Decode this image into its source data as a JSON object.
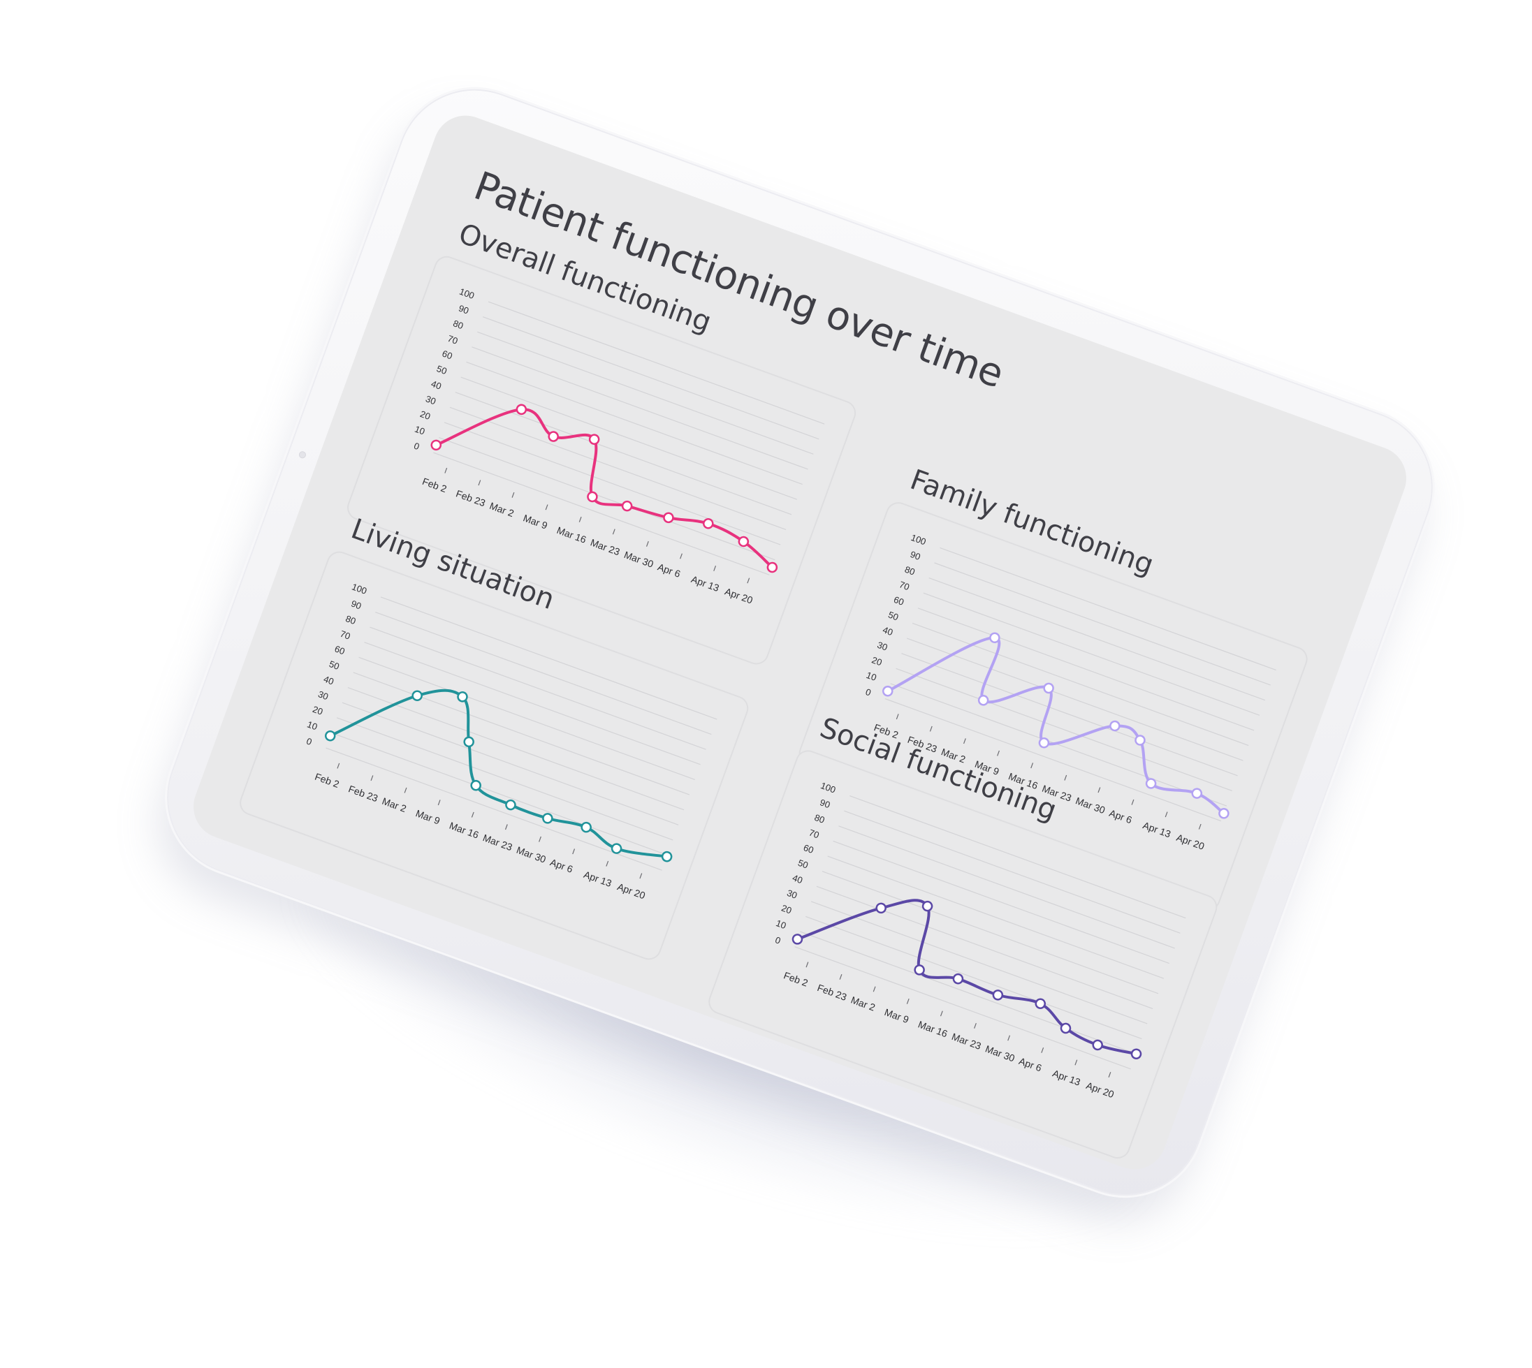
{
  "page": {
    "title": "Patient functioning over time"
  },
  "chart_data": [
    {
      "id": "overall",
      "type": "line",
      "title": "Overall functioning",
      "color": "#e8327e",
      "categories": [
        "Feb 2",
        "Feb 23",
        "Mar 2",
        "Mar 9",
        "Mar 16",
        "Mar 23",
        "Mar 30",
        "Apr 6",
        "Apr 13",
        "Apr 20"
      ],
      "ylim": [
        0,
        100
      ],
      "yticks": [
        0,
        10,
        20,
        30,
        40,
        50,
        60,
        70,
        80,
        90,
        100
      ],
      "grid": true,
      "points": [
        {
          "x": 0,
          "y": 5
        },
        {
          "x": 1.9,
          "y": 44
        },
        {
          "x": 3.0,
          "y": 35
        },
        {
          "x": 4.1,
          "y": 42
        },
        {
          "x": 4.6,
          "y": 8
        },
        {
          "x": 5.6,
          "y": 10
        },
        {
          "x": 6.8,
          "y": 12
        },
        {
          "x": 7.9,
          "y": 17
        },
        {
          "x": 9.0,
          "y": 14
        },
        {
          "x": 10.0,
          "y": 5
        }
      ]
    },
    {
      "id": "family",
      "type": "line",
      "title": "Family functioning",
      "color": "#b3a2f3",
      "categories": [
        "Feb 2",
        "Feb 23",
        "Mar 2",
        "Mar 9",
        "Mar 16",
        "Mar 23",
        "Mar 30",
        "Apr 6",
        "Apr 13",
        "Apr 20"
      ],
      "ylim": [
        0,
        100
      ],
      "yticks": [
        0,
        10,
        20,
        30,
        40,
        50,
        60,
        70,
        80,
        90,
        100
      ],
      "grid": true,
      "points": [
        {
          "x": 0,
          "y": 5
        },
        {
          "x": 2.3,
          "y": 59
        },
        {
          "x": 2.6,
          "y": 20
        },
        {
          "x": 4.2,
          "y": 41
        },
        {
          "x": 4.6,
          "y": 8
        },
        {
          "x": 6.3,
          "y": 33
        },
        {
          "x": 7.1,
          "y": 30
        },
        {
          "x": 7.8,
          "y": 7
        },
        {
          "x": 9.1,
          "y": 11
        },
        {
          "x": 10.0,
          "y": 5
        }
      ]
    },
    {
      "id": "living",
      "type": "line",
      "title": "Living situation",
      "color": "#21939a",
      "categories": [
        "Feb 2",
        "Feb 23",
        "Mar 2",
        "Mar 9",
        "Mar 16",
        "Mar 23",
        "Mar 30",
        "Apr 6",
        "Apr 13",
        "Apr 20"
      ],
      "ylim": [
        0,
        100
      ],
      "yticks": [
        0,
        10,
        20,
        30,
        40,
        50,
        60,
        70,
        80,
        90,
        100
      ],
      "grid": true,
      "points": [
        {
          "x": 0,
          "y": 8
        },
        {
          "x": 1.9,
          "y": 50
        },
        {
          "x": 3.1,
          "y": 59
        },
        {
          "x": 3.7,
          "y": 34
        },
        {
          "x": 4.3,
          "y": 10
        },
        {
          "x": 5.4,
          "y": 6
        },
        {
          "x": 6.5,
          "y": 6
        },
        {
          "x": 7.6,
          "y": 9
        },
        {
          "x": 8.6,
          "y": 3
        },
        {
          "x": 10.0,
          "y": 9
        }
      ]
    },
    {
      "id": "social",
      "type": "line",
      "title": "Social functioning",
      "color": "#5b48a6",
      "categories": [
        "Feb 2",
        "Feb 23",
        "Mar 2",
        "Mar 9",
        "Mar 16",
        "Mar 23",
        "Mar 30",
        "Apr 6",
        "Apr 13",
        "Apr 20"
      ],
      "ylim": [
        0,
        100
      ],
      "yticks": [
        0,
        10,
        20,
        30,
        40,
        50,
        60,
        70,
        80,
        90,
        100
      ],
      "grid": true,
      "points": [
        {
          "x": 0,
          "y": 5
        },
        {
          "x": 1.9,
          "y": 41
        },
        {
          "x": 3.1,
          "y": 52
        },
        {
          "x": 3.5,
          "y": 13
        },
        {
          "x": 4.6,
          "y": 16
        },
        {
          "x": 5.8,
          "y": 15
        },
        {
          "x": 7.0,
          "y": 19
        },
        {
          "x": 7.9,
          "y": 10
        },
        {
          "x": 8.9,
          "y": 7
        },
        {
          "x": 10.0,
          "y": 10
        }
      ]
    }
  ]
}
